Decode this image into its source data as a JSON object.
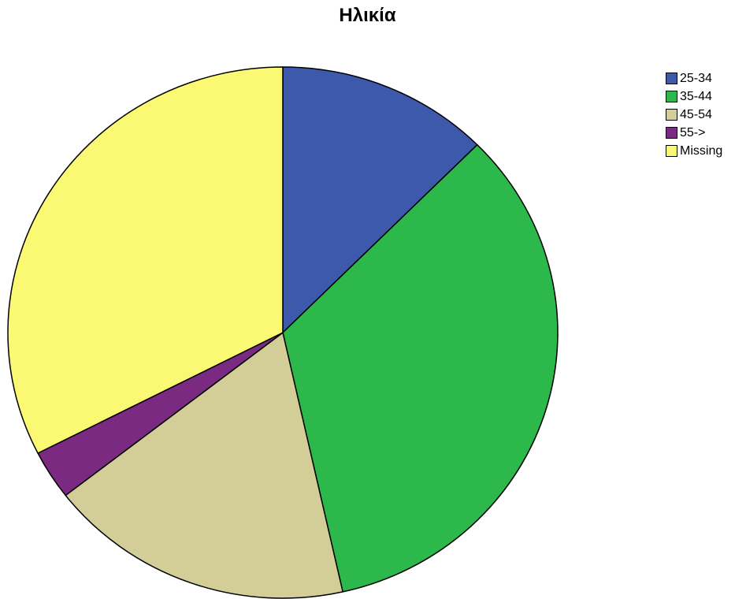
{
  "chart_data": {
    "type": "pie",
    "title": "Ηλικία",
    "categories": [
      "25-34",
      "35-44",
      "45-54",
      "55->",
      "Missing"
    ],
    "values": [
      12.5,
      34.0,
      18.0,
      3.0,
      32.5
    ],
    "colors": [
      "#3d59ab",
      "#2db84b",
      "#d3cd98",
      "#7a2a80",
      "#fbf873"
    ],
    "start_angle_deg": 0,
    "direction": "clockwise",
    "legend_position": "top-right"
  }
}
